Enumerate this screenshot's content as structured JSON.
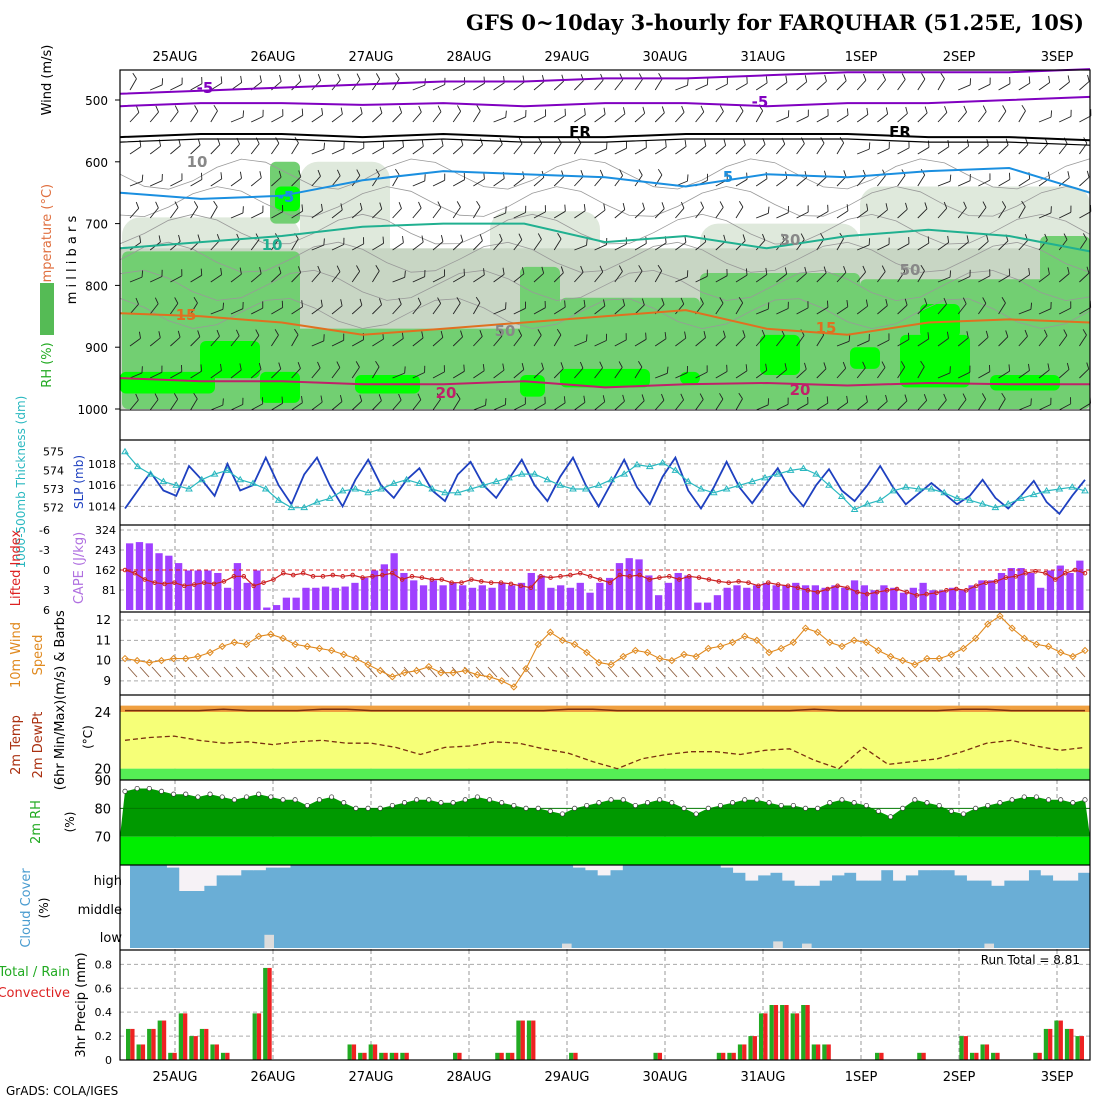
{
  "title": "GFS 0~10day 3-hourly for FARQUHAR (51.25E, 10S)",
  "credit": "GrADS: COLA/IGES",
  "date_labels": [
    "25AUG",
    "26AUG",
    "27AUG",
    "28AUG",
    "29AUG",
    "30AUG",
    "31AUG",
    "1SEP",
    "2SEP",
    "3SEP"
  ],
  "colors": {
    "rh_light": "#dfeedd",
    "rh_mid": "#72cf72",
    "rh_bright": "#00ff00",
    "purple": "#a040ff",
    "teal": "#20b2aa",
    "blue": "#1e40c0",
    "orange": "#e07020",
    "bar_green": "#22aa22",
    "bar_red": "#ee2222",
    "cloud": "#6aaed6"
  },
  "chart_data": [
    {
      "name": "upper_air",
      "type": "heatmap",
      "ylabel_parts": [
        "RH (%)",
        "Temperature (°C)",
        "Wind (m/s)"
      ],
      "ylabel_right": "m i l l i b a r s",
      "y_ticks": [
        500,
        600,
        700,
        800,
        900,
        1000
      ],
      "ylim": [
        1000,
        450
      ],
      "contour_labels": [
        {
          "text": "-5",
          "color": "#8000c0"
        },
        {
          "text": "-5",
          "color": "#8000c0"
        },
        {
          "text": "FR",
          "color": "#000000"
        },
        {
          "text": "FR",
          "color": "#000000"
        },
        {
          "text": "-5",
          "color": "#1a8fe0"
        },
        {
          "text": "5",
          "color": "#1a8fe0"
        },
        {
          "text": "10",
          "color": "#20b090"
        },
        {
          "text": "15",
          "color": "#e07020"
        },
        {
          "text": "15",
          "color": "#e07020"
        },
        {
          "text": "20",
          "color": "#c0206a"
        },
        {
          "text": "20",
          "color": "#c0206a"
        },
        {
          "text": "10",
          "color": "#888888"
        },
        {
          "text": "30",
          "color": "#888888"
        },
        {
          "text": "50",
          "color": "#888888"
        },
        {
          "text": "50",
          "color": "#888888"
        }
      ],
      "isotherms": [
        {
          "temp": -5,
          "color": "#8000c0",
          "p": [
            490,
            485,
            480,
            475,
            470,
            470,
            465,
            465,
            460,
            455,
            455,
            455,
            450
          ]
        },
        {
          "temp": -5,
          "color": "#8000c0",
          "p": [
            510,
            505,
            505,
            508,
            505,
            510,
            505,
            505,
            510,
            505,
            505,
            500,
            495
          ]
        },
        {
          "temp": 0,
          "color": "#000000",
          "p": [
            560,
            555,
            555,
            560,
            555,
            560,
            560,
            555,
            555,
            555,
            560,
            560,
            565
          ]
        },
        {
          "temp": 5,
          "color": "#1a8fe0",
          "p": [
            650,
            660,
            655,
            630,
            615,
            620,
            625,
            640,
            620,
            625,
            615,
            610,
            650
          ]
        },
        {
          "temp": 10,
          "color": "#20b090",
          "p": [
            740,
            730,
            720,
            705,
            700,
            700,
            730,
            720,
            740,
            720,
            710,
            720,
            745
          ]
        },
        {
          "temp": 15,
          "color": "#e07020",
          "p": [
            845,
            850,
            860,
            880,
            870,
            860,
            850,
            840,
            870,
            880,
            860,
            855,
            860
          ]
        },
        {
          "temp": 20,
          "color": "#c0206a",
          "p": [
            950,
            955,
            955,
            960,
            960,
            955,
            965,
            960,
            958,
            962,
            958,
            960,
            960
          ]
        }
      ]
    },
    {
      "name": "slp_thickness",
      "type": "line",
      "ylabel_left": "1000-500mb Thickness (dm)",
      "ylabel_right": "SLP (mb)",
      "left_ticks": [
        575,
        574,
        573,
        572
      ],
      "right_ticks": [
        1018,
        1016,
        1014
      ],
      "series": [
        {
          "name": "SLP",
          "color": "#1e40c0",
          "ylim": [
            1013,
            1019.5
          ],
          "values": [
            1013.8,
            1015.5,
            1017.2,
            1015.5,
            1015.0,
            1017.8,
            1016.5,
            1015.0,
            1018.0,
            1015.5,
            1016.0,
            1018.6,
            1016.0,
            1014.2,
            1017.0,
            1018.6,
            1016.0,
            1014.0,
            1016.5,
            1018.4,
            1016.0,
            1014.8,
            1016.5,
            1017.6,
            1015.5,
            1014.5,
            1017.0,
            1018.2,
            1016.0,
            1014.8,
            1016.6,
            1018.4,
            1016.0,
            1014.5,
            1016.8,
            1018.6,
            1016.0,
            1014.0,
            1016.2,
            1018.4,
            1015.8,
            1014.2,
            1016.8,
            1018.6,
            1015.5,
            1013.8,
            1015.8,
            1018.2,
            1015.8,
            1014.3,
            1016.0,
            1017.6,
            1015.4,
            1014.0,
            1016.0,
            1017.5,
            1015.5,
            1014.5,
            1016.0,
            1017.8,
            1015.8,
            1014.2,
            1015.2,
            1016.2,
            1015.2,
            1014.2,
            1015.0,
            1016.5,
            1014.8,
            1013.8,
            1015.0,
            1016.4,
            1014.4,
            1013.3,
            1015.0,
            1016.5
          ]
        },
        {
          "name": "Thickness",
          "color": "#2ab8c0",
          "ylim": [
            571.5,
            575.2
          ],
          "values": [
            575.0,
            574.2,
            573.8,
            573.4,
            573.2,
            573.0,
            573.5,
            573.8,
            574.0,
            573.5,
            573.3,
            573.0,
            572.4,
            572.0,
            572.0,
            572.3,
            572.5,
            572.9,
            573.0,
            572.8,
            573.0,
            573.3,
            573.5,
            573.3,
            573.0,
            572.8,
            572.8,
            573.0,
            573.2,
            573.4,
            573.6,
            573.8,
            573.8,
            573.5,
            573.2,
            573.0,
            573.0,
            573.2,
            573.5,
            573.8,
            574.3,
            574.2,
            574.4,
            574.0,
            573.4,
            573.0,
            572.8,
            573.0,
            573.2,
            573.4,
            573.6,
            573.8,
            574.0,
            574.1,
            573.8,
            573.2,
            572.6,
            571.9,
            572.2,
            572.4,
            572.9,
            573.1,
            573.0,
            573.0,
            572.8,
            572.5,
            572.4,
            572.2,
            572.0,
            572.2,
            572.5,
            572.7,
            572.9,
            573.0,
            573.1,
            572.9
          ]
        }
      ]
    },
    {
      "name": "cape_li",
      "type": "bar",
      "ylabel_left": "Lifted Index",
      "ylabel_right": "CAPE (J/kg)",
      "left_ticks": [
        "-6",
        "-3",
        "0",
        "3",
        "6"
      ],
      "right_ticks": [
        324,
        243,
        162,
        81
      ],
      "ylim": [
        0,
        324
      ],
      "values": [
        270,
        275,
        270,
        230,
        220,
        190,
        160,
        160,
        160,
        150,
        90,
        190,
        110,
        160,
        10,
        20,
        50,
        50,
        90,
        90,
        95,
        90,
        95,
        110,
        130,
        160,
        185,
        230,
        150,
        120,
        100,
        120,
        100,
        110,
        100,
        90,
        100,
        90,
        110,
        100,
        110,
        150,
        140,
        90,
        100,
        90,
        110,
        70,
        110,
        130,
        190,
        210,
        205,
        140,
        60,
        110,
        150,
        140,
        30,
        30,
        60,
        90,
        100,
        90,
        100,
        110,
        100,
        100,
        110,
        100,
        100,
        90,
        100,
        90,
        120,
        100,
        80,
        100,
        90,
        70,
        90,
        110,
        80,
        80,
        90,
        80,
        100,
        120,
        120,
        150,
        170,
        170,
        150,
        90,
        160,
        180,
        150,
        200
      ],
      "li_values": [
        0.0,
        0.5,
        1.5,
        2.0,
        2.2,
        2.0,
        2.5,
        2.3,
        2.0,
        2.2,
        1.8,
        1.0,
        1.0,
        2.5,
        2.0,
        1.5,
        0.5,
        0.8,
        0.5,
        1.0,
        1.0,
        0.8,
        1.0,
        0.8,
        1.2,
        1.0,
        0.8,
        0.5,
        1.5,
        1.0,
        1.2,
        1.5,
        1.5,
        2.0,
        2.0,
        1.5,
        1.8,
        2.0,
        2.0,
        2.2,
        2.5,
        2.8,
        1.0,
        1.2,
        1.0,
        0.8,
        0.5,
        1.0,
        1.5,
        2.0,
        0.8,
        1.0,
        0.8,
        1.5,
        1.2,
        1.0,
        1.5,
        1.0,
        1.2,
        1.5,
        1.8,
        2.0,
        1.8,
        2.0,
        2.5,
        2.0,
        2.3,
        2.5,
        2.8,
        3.2,
        3.5,
        3.0,
        2.5,
        2.8,
        3.5,
        3.8,
        3.5,
        3.2,
        3.0,
        3.5,
        4.0,
        3.8,
        3.6,
        3.2,
        3.0,
        3.2,
        2.5,
        2.0,
        1.8,
        1.2,
        1.0,
        0.5,
        0.2,
        0.5,
        1.5,
        0.5,
        0.0,
        0.5
      ]
    },
    {
      "name": "wind10m",
      "type": "line",
      "ylabel_parts": [
        "10m Wind",
        "Speed",
        "(m/s) & Barbs"
      ],
      "y_ticks": [
        12,
        11,
        10,
        9
      ],
      "ylim": [
        8.3,
        12.4
      ],
      "values": [
        10.1,
        10.0,
        9.9,
        10.0,
        10.1,
        10.1,
        10.2,
        10.4,
        10.7,
        10.9,
        10.8,
        11.2,
        11.3,
        11.1,
        10.8,
        10.7,
        10.6,
        10.5,
        10.3,
        10.1,
        9.8,
        9.5,
        9.2,
        9.4,
        9.5,
        9.7,
        9.4,
        9.4,
        9.5,
        9.3,
        9.2,
        9.0,
        8.7,
        9.6,
        10.8,
        11.4,
        11.0,
        10.8,
        10.4,
        9.9,
        9.8,
        10.2,
        10.5,
        10.4,
        10.1,
        10.0,
        10.3,
        10.2,
        10.6,
        10.7,
        10.9,
        11.2,
        11.0,
        10.4,
        10.6,
        10.9,
        11.6,
        11.4,
        10.9,
        10.7,
        11.0,
        10.9,
        10.5,
        10.2,
        10.0,
        9.8,
        10.1,
        10.1,
        10.3,
        10.6,
        11.1,
        11.8,
        12.2,
        11.6,
        11.1,
        10.8,
        10.7,
        10.4,
        10.2,
        10.5
      ]
    },
    {
      "name": "temp2m",
      "type": "line",
      "ylabel_parts": [
        "2m Temp",
        "2m DewPt",
        "(6hr Min/Max)"
      ],
      "y_ticks": [
        24,
        20
      ],
      "ylim": [
        19.2,
        25.2
      ],
      "temp": [
        24.1,
        24.1,
        24.1,
        24.1,
        24.2,
        24.1,
        24.1,
        24.1,
        24.2,
        24.2,
        24.1,
        24.1,
        24.1,
        24.1,
        24.1,
        24.1,
        24.1,
        24.1,
        24.2,
        24.2,
        24.1,
        24.1,
        24.1,
        24.1,
        24.1,
        24.1,
        24.1,
        24.1,
        24.2,
        24.1,
        24.1,
        24.1,
        24.1,
        24.1,
        24.2,
        24.2,
        24.1,
        24.1,
        24.1,
        24.1
      ],
      "dewpt": [
        22.0,
        22.2,
        22.3,
        22.0,
        21.8,
        21.9,
        21.7,
        21.9,
        22.0,
        21.8,
        21.8,
        21.5,
        21.0,
        21.5,
        21.6,
        21.9,
        21.8,
        21.4,
        21.1,
        20.5,
        20.0,
        20.7,
        21.0,
        21.2,
        21.2,
        21.0,
        21.3,
        21.4,
        20.6,
        20.0,
        21.5,
        20.3,
        20.5,
        20.7,
        21.2,
        21.8,
        22.0,
        21.6,
        21.3,
        21.5
      ]
    },
    {
      "name": "rh2m",
      "type": "area",
      "ylabel": "2m RH",
      "unit": "(%)",
      "y_ticks": [
        90,
        80,
        70
      ],
      "ylim": [
        60,
        90
      ],
      "values": [
        86,
        87,
        87,
        86,
        85,
        85,
        84,
        85,
        84,
        83,
        84,
        85,
        84,
        83,
        83,
        81,
        83,
        84,
        82,
        80,
        80,
        80,
        81,
        82,
        83,
        83,
        82,
        82,
        83,
        84,
        83,
        82,
        81,
        80,
        80,
        79,
        78,
        80,
        81,
        82,
        83,
        83,
        81,
        82,
        83,
        82,
        80,
        78,
        80,
        81,
        82,
        83,
        83,
        82,
        81,
        81,
        80,
        80,
        82,
        83,
        82,
        81,
        79,
        77,
        80,
        83,
        82,
        81,
        79,
        78,
        80,
        81,
        82,
        83,
        84,
        84,
        83,
        83,
        82,
        83
      ]
    },
    {
      "name": "cloud",
      "type": "area",
      "ylabel": "Cloud Cover",
      "unit": "(%)",
      "y_labels": [
        "high",
        "middle",
        "low"
      ],
      "high_gaps": [
        0,
        0,
        0,
        10,
        100,
        100,
        80,
        40,
        40,
        20,
        20,
        10,
        10,
        0,
        0,
        0,
        0,
        0,
        0,
        0,
        0,
        0,
        0,
        0,
        0,
        0,
        0,
        0,
        0,
        0,
        0,
        0,
        0,
        0,
        0,
        0,
        10,
        20,
        40,
        20,
        0,
        0,
        0,
        0,
        0,
        0,
        0,
        0,
        10,
        30,
        60,
        40,
        30,
        60,
        80,
        80,
        60,
        40,
        30,
        60,
        60,
        20,
        60,
        40,
        20,
        20,
        20,
        40,
        60,
        60,
        80,
        60,
        60,
        20,
        40,
        60,
        60,
        30
      ],
      "low_values": [
        0,
        0,
        0,
        0,
        0,
        0,
        0,
        0,
        0,
        0,
        0,
        0,
        0,
        0,
        60,
        0,
        0,
        0,
        0,
        0,
        0,
        0,
        0,
        0,
        0,
        0,
        0,
        0,
        0,
        0,
        0,
        0,
        0,
        0,
        0,
        0,
        0,
        0,
        0,
        0,
        0,
        0,
        0,
        0,
        0,
        20,
        0,
        0,
        0,
        0,
        0,
        0,
        0,
        0,
        0,
        0,
        0,
        0,
        0,
        0,
        0,
        0,
        0,
        0,
        0,
        0,
        0,
        30,
        0,
        0,
        20,
        0,
        0,
        0,
        0,
        0,
        0,
        0,
        0,
        0,
        0,
        0,
        0,
        0,
        0,
        0,
        0,
        0,
        0,
        20,
        0,
        0,
        0,
        0,
        0,
        0,
        0,
        0,
        0,
        0
      ]
    },
    {
      "name": "precip",
      "type": "bar",
      "ylabel_parts": [
        "Total / Rain",
        "Convective"
      ],
      "ylabel_right": "3hr Precip (mm)",
      "y_ticks": [
        0.8,
        0.6,
        0.4,
        0.2,
        0
      ],
      "ylim": [
        0,
        0.92
      ],
      "run_total_label": "Run Total = 8.81",
      "values": [
        0.26,
        0.13,
        0.26,
        0.33,
        0.06,
        0.39,
        0.2,
        0.26,
        0.13,
        0.06,
        0,
        0,
        0.39,
        0.77,
        0,
        0,
        0,
        0,
        0,
        0,
        0,
        0.13,
        0.06,
        0.13,
        0.06,
        0.06,
        0.06,
        0,
        0,
        0,
        0,
        0.06,
        0,
        0,
        0,
        0.06,
        0.06,
        0.33,
        0.33,
        0,
        0,
        0,
        0.06,
        0,
        0,
        0,
        0,
        0,
        0,
        0,
        0.06,
        0,
        0,
        0,
        0,
        0,
        0.06,
        0.06,
        0.13,
        0.2,
        0.39,
        0.46,
        0.46,
        0.39,
        0.46,
        0.13,
        0.13,
        0,
        0,
        0,
        0,
        0.06,
        0,
        0,
        0,
        0.06,
        0,
        0,
        0,
        0.2,
        0.06,
        0.13,
        0.06,
        0,
        0,
        0,
        0.06,
        0.26,
        0.33,
        0.26,
        0.2
      ]
    }
  ]
}
